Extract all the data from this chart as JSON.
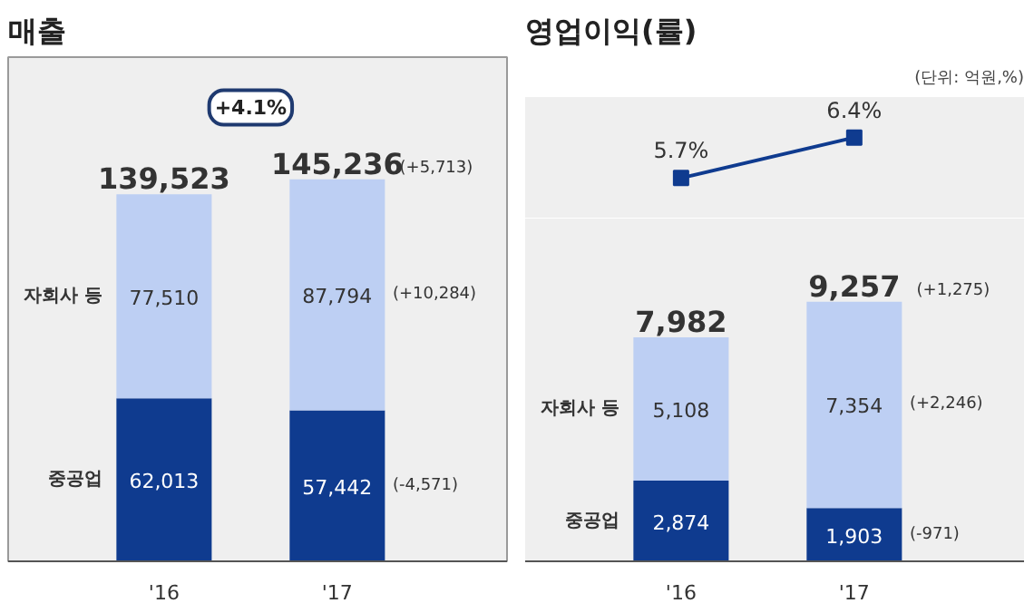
{
  "chart_data": [
    {
      "type": "bar",
      "title": "매출",
      "categories": [
        "'16",
        "'17"
      ],
      "stacked": true,
      "tick_labels": "x",
      "series": [
        {
          "name": "중공업",
          "color": "#0f3b8f",
          "values": [
            62013,
            57442
          ],
          "value_labels": [
            "62,013",
            "57,442"
          ]
        },
        {
          "name": "자회사 등",
          "color": "#bdcff3",
          "values": [
            77510,
            87794
          ],
          "value_labels": [
            "77,510",
            "87,794"
          ]
        }
      ],
      "totals": [
        "139,523",
        "145,236"
      ],
      "annotations": [
        "+4.1%",
        "(+5,713)",
        "(+10,284)",
        "(-4,571)"
      ]
    },
    {
      "type": "line",
      "title": "영업이익(률)",
      "subtitle": "(단위: 억원,%)",
      "categories": [
        null,
        null
      ],
      "tick_labels": false,
      "marker": "square",
      "series": [
        {
          "color": "#0f3b8f",
          "values": [
            5.7,
            6.4
          ],
          "value_labels": [
            "5.7%",
            "6.4%"
          ]
        }
      ]
    },
    {
      "type": "bar",
      "categories": [
        "'16",
        "'17"
      ],
      "stacked": true,
      "tick_labels": "x",
      "series": [
        {
          "name": "중공업",
          "color": "#0f3b8f",
          "values": [
            2874,
            1903
          ],
          "value_labels": [
            "2,874",
            "1,903"
          ]
        },
        {
          "name": "자회사 등",
          "color": "#bdcff3",
          "values": [
            5108,
            7354
          ],
          "value_labels": [
            "5,108",
            "7,354"
          ]
        }
      ],
      "totals": [
        "7,982",
        "9,257"
      ],
      "annotations": [
        "(+1,275)",
        "(+2,246)",
        "(-971)"
      ]
    }
  ]
}
